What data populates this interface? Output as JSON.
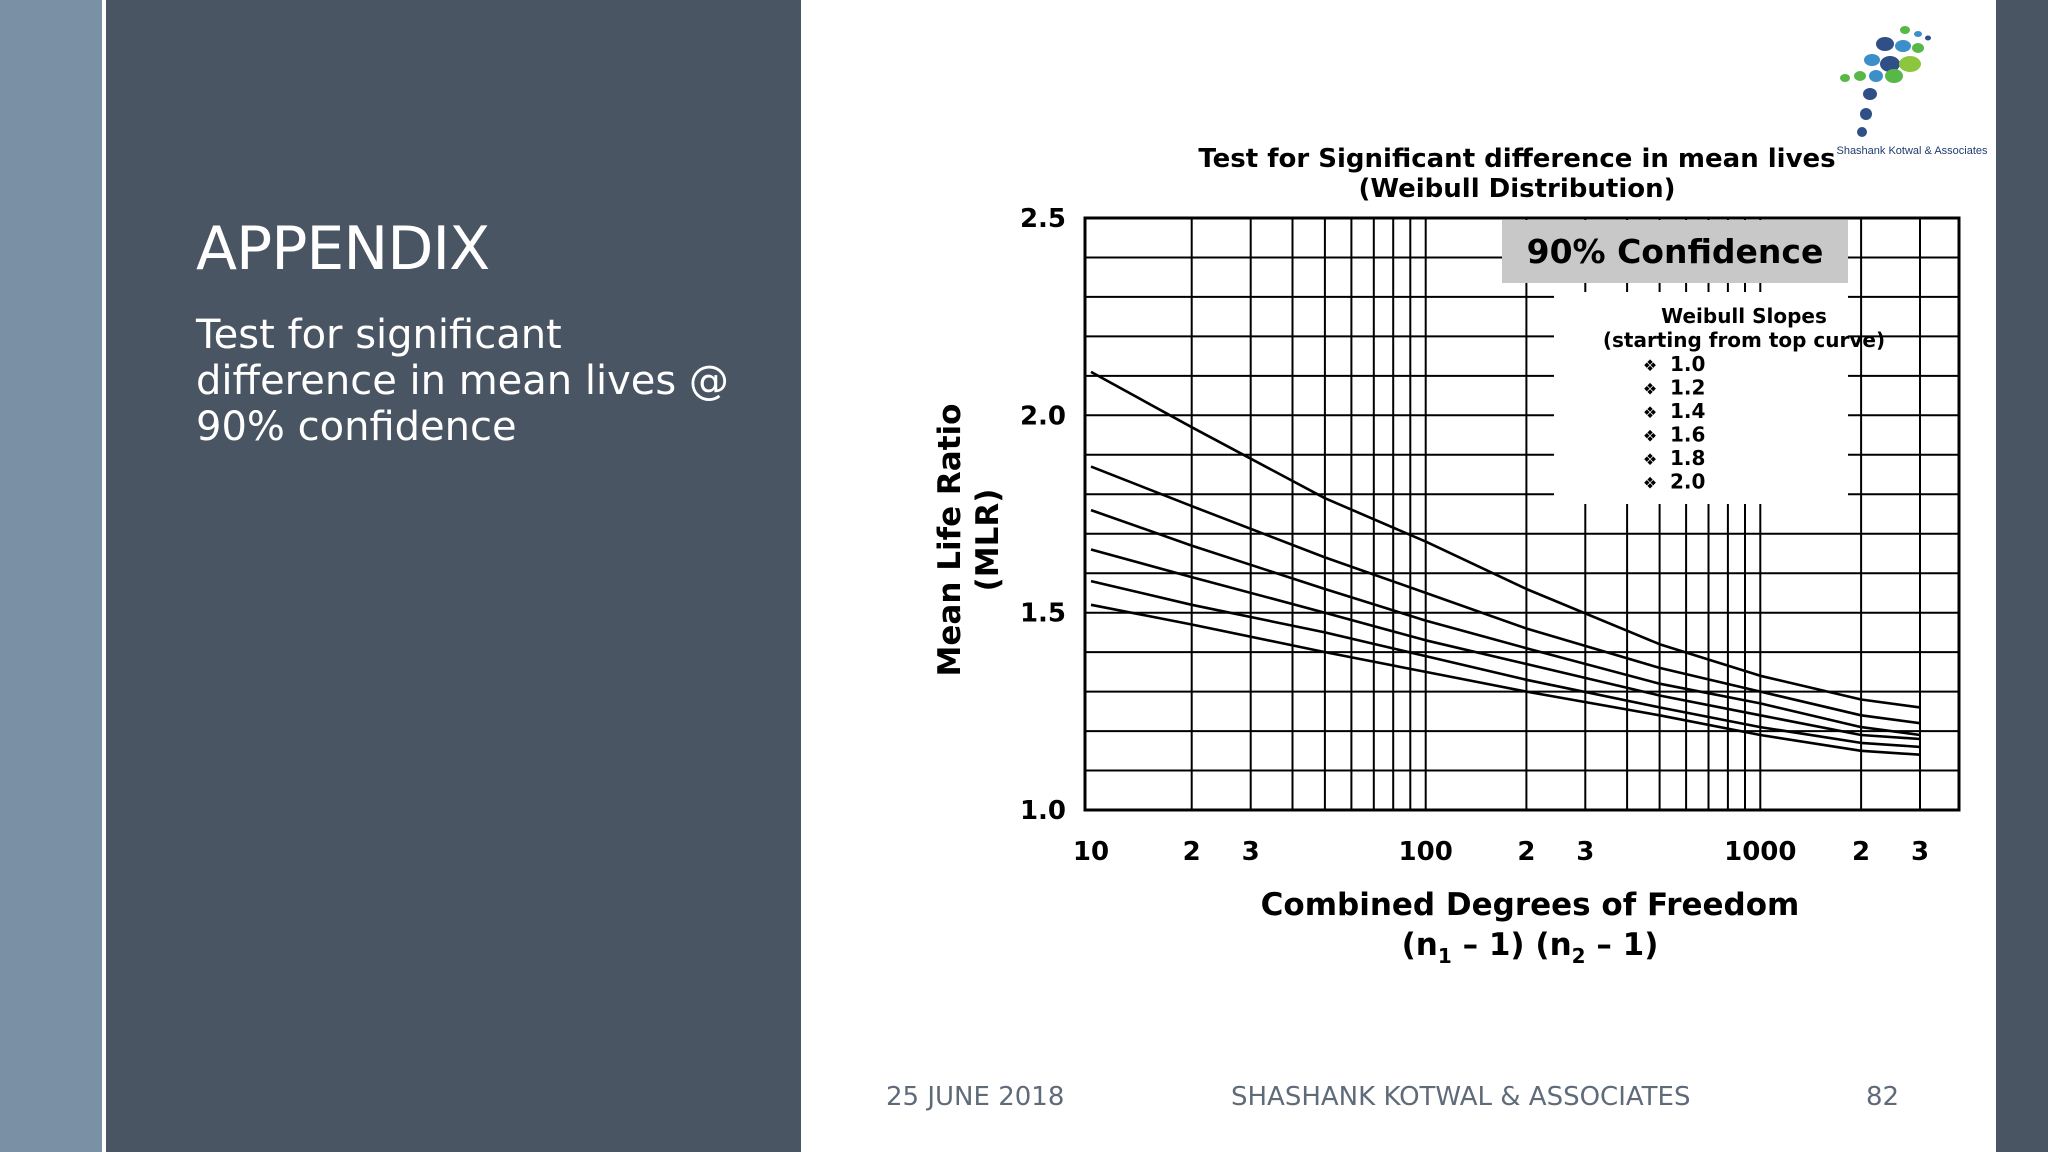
{
  "slide": {
    "title": "APPENDIX",
    "subtitle": "Test for significant difference in mean lives @ 90% confidence"
  },
  "footer": {
    "date": "25 JUNE 2018",
    "company": "SHASHANK KOTWAL & ASSOCIATES",
    "page": "82"
  },
  "logo": {
    "text": "Shashank Kotwal & Associates",
    "colors": [
      "#2f4f86",
      "#3c8fc8",
      "#58b847",
      "#8cc63e"
    ]
  },
  "colors": {
    "panel": "#4a5563",
    "strip": "#7a90a4",
    "confidence_box": "#c8c8c8"
  },
  "chart_data": {
    "type": "line",
    "title": "Test for Significant difference in mean lives",
    "subtitle": "(Weibull Distribution)",
    "xlabel": "Combined Degrees of Freedom",
    "xlabel_line2_parts": [
      "(n",
      "1",
      " – 1) (n",
      "2",
      " – 1)"
    ],
    "ylabel": "Mean Life Ratio",
    "ylabel_line2": "(MLR)",
    "x_scale": "log",
    "xlim": [
      10,
      3000
    ],
    "ylim": [
      1.0,
      2.5
    ],
    "y_ticks": [
      "1.0",
      "1.5",
      "2.0",
      "2.5"
    ],
    "x_tick_labels": [
      {
        "value": 10,
        "label": "10"
      },
      {
        "value": 20,
        "label": "2"
      },
      {
        "value": 30,
        "label": "3"
      },
      {
        "value": 100,
        "label": "100"
      },
      {
        "value": 200,
        "label": "2"
      },
      {
        "value": 300,
        "label": "3"
      },
      {
        "value": 1000,
        "label": "1000"
      },
      {
        "value": 2000,
        "label": "2"
      },
      {
        "value": 3000,
        "label": "3"
      }
    ],
    "grid": true,
    "confidence_label": "90% Confidence",
    "legend": {
      "title": "Weibull Slopes",
      "subtitle": "(starting from top curve)",
      "marker": "❖",
      "placement": "top-right",
      "entries": [
        "1.0",
        "1.2",
        "1.4",
        "1.6",
        "1.8",
        "2.0"
      ]
    },
    "x": [
      10,
      20,
      50,
      100,
      200,
      500,
      1000,
      2000,
      3000
    ],
    "series": [
      {
        "values": [
          2.11,
          1.97,
          1.79,
          1.68,
          1.56,
          1.42,
          1.34,
          1.28,
          1.26
        ]
      },
      {
        "values": [
          1.87,
          1.77,
          1.64,
          1.55,
          1.46,
          1.36,
          1.3,
          1.24,
          1.22
        ]
      },
      {
        "values": [
          1.76,
          1.67,
          1.56,
          1.48,
          1.41,
          1.32,
          1.27,
          1.21,
          1.19
        ]
      },
      {
        "values": [
          1.66,
          1.59,
          1.5,
          1.43,
          1.37,
          1.29,
          1.24,
          1.19,
          1.18
        ]
      },
      {
        "values": [
          1.58,
          1.52,
          1.45,
          1.39,
          1.33,
          1.26,
          1.21,
          1.17,
          1.16
        ]
      },
      {
        "values": [
          1.52,
          1.47,
          1.4,
          1.35,
          1.3,
          1.24,
          1.19,
          1.15,
          1.14
        ]
      }
    ]
  }
}
